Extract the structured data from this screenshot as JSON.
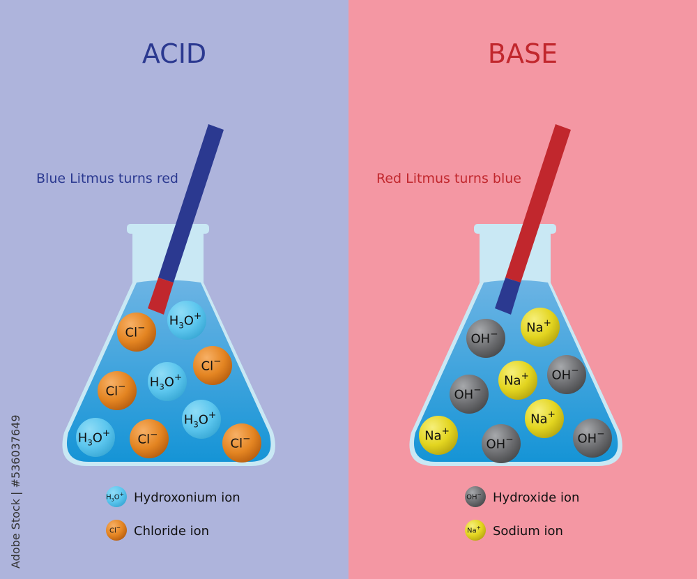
{
  "acid": {
    "title": "ACID",
    "litmus_text": "Blue Litmus turns red",
    "ions": [
      {
        "symbol": "Cl",
        "charge": "−",
        "type": "chloride"
      },
      {
        "symbol": "H3O",
        "charge": "+",
        "type": "hydroxonium"
      },
      {
        "symbol": "Cl",
        "charge": "−",
        "type": "chloride"
      },
      {
        "symbol": "Cl",
        "charge": "−",
        "type": "chloride"
      },
      {
        "symbol": "H3O",
        "charge": "+",
        "type": "hydroxonium"
      },
      {
        "symbol": "H3O",
        "charge": "+",
        "type": "hydroxonium"
      },
      {
        "symbol": "H3O",
        "charge": "+",
        "type": "hydroxonium"
      },
      {
        "symbol": "Cl",
        "charge": "−",
        "type": "chloride"
      },
      {
        "symbol": "Cl",
        "charge": "−",
        "type": "chloride"
      }
    ],
    "legend": [
      {
        "symbol": "H3O",
        "charge": "+",
        "label": "Hydroxonium ion"
      },
      {
        "symbol": "Cl",
        "charge": "−",
        "label": "Chloride ion"
      }
    ]
  },
  "base": {
    "title": "BASE",
    "litmus_text": "Red Litmus turns blue",
    "ions": [
      {
        "symbol": "OH",
        "charge": "−",
        "type": "hydroxide"
      },
      {
        "symbol": "Na",
        "charge": "+",
        "type": "sodium"
      },
      {
        "symbol": "Na",
        "charge": "+",
        "type": "sodium"
      },
      {
        "symbol": "OH",
        "charge": "−",
        "type": "hydroxide"
      },
      {
        "symbol": "OH",
        "charge": "−",
        "type": "hydroxide"
      },
      {
        "symbol": "Na",
        "charge": "+",
        "type": "sodium"
      },
      {
        "symbol": "Na",
        "charge": "+",
        "type": "sodium"
      },
      {
        "symbol": "OH",
        "charge": "−",
        "type": "hydroxide"
      },
      {
        "symbol": "OH",
        "charge": "−",
        "type": "hydroxide"
      }
    ],
    "legend": [
      {
        "symbol": "OH",
        "charge": "−",
        "label": "Hydroxide ion"
      },
      {
        "symbol": "Na",
        "charge": "+",
        "label": "Sodium ion"
      }
    ]
  },
  "watermark": "Adobe Stock | #536037649",
  "colors": {
    "acid_bg": "#aeb4dc",
    "base_bg": "#f497a3",
    "acid_title": "#2b3990",
    "base_title": "#c1272d",
    "litmus_blue": "#2b3990",
    "litmus_red": "#c1272d",
    "liquid": "#3a9fdc",
    "chloride": "#e0801e",
    "hydroxonium": "#5cc8ee",
    "hydroxide": "#6d6e71",
    "sodium": "#e6d822"
  }
}
